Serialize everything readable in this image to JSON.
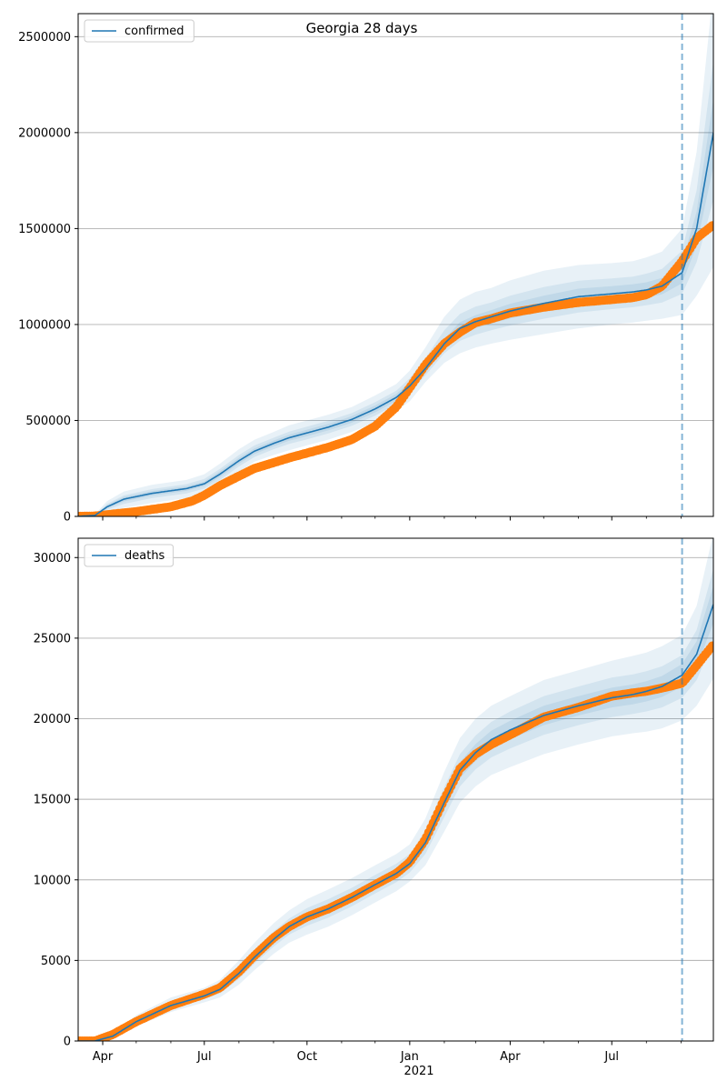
{
  "title": "Georgia 28 days",
  "colors": {
    "model": "#1f77b4",
    "observed": "#ff7f0e",
    "band": "#1f77b4",
    "grid": "#b0b0b0",
    "forecast_line": "#1f77b4"
  },
  "x_axis": {
    "start": "2020-03-10",
    "end": "2021-09-30",
    "forecast_start": "2021-09-02",
    "ticks": [
      {
        "date": "2020-04-01",
        "label": "Apr"
      },
      {
        "date": "2020-07-01",
        "label": "Jul"
      },
      {
        "date": "2020-10-01",
        "label": "Oct"
      },
      {
        "date": "2021-01-01",
        "label": "Jan"
      },
      {
        "date": "2021-04-01",
        "label": "Apr"
      },
      {
        "date": "2021-07-01",
        "label": "Jul"
      }
    ],
    "minor_ticks": [
      "2020-05-01",
      "2020-06-01",
      "2020-08-01",
      "2020-09-01",
      "2020-11-01",
      "2020-12-01",
      "2021-02-01",
      "2021-03-01",
      "2021-05-01",
      "2021-06-01",
      "2021-08-01",
      "2021-09-01"
    ],
    "year_label": "2021"
  },
  "chart_data": [
    {
      "type": "line",
      "legend": "confirmed",
      "legend_placement": "upper-left",
      "grid": "horizontal",
      "ylim": [
        0,
        2620000
      ],
      "yticks": [
        0,
        500000,
        1000000,
        1500000,
        2000000,
        2500000
      ],
      "ytick_labels": [
        "0",
        "500000",
        "1000000",
        "1500000",
        "2000000",
        "2500000"
      ],
      "model": {
        "x": [
          "2020-03-10",
          "2020-03-25",
          "2020-04-05",
          "2020-04-20",
          "2020-05-15",
          "2020-06-15",
          "2020-07-01",
          "2020-07-15",
          "2020-08-01",
          "2020-08-15",
          "2020-09-01",
          "2020-09-15",
          "2020-10-01",
          "2020-10-20",
          "2020-11-10",
          "2020-12-01",
          "2020-12-20",
          "2021-01-01",
          "2021-01-15",
          "2021-02-01",
          "2021-02-15",
          "2021-03-01",
          "2021-03-15",
          "2021-04-01",
          "2021-05-01",
          "2021-06-01",
          "2021-07-01",
          "2021-07-20",
          "2021-08-01",
          "2021-08-15",
          "2021-09-02",
          "2021-09-15",
          "2021-09-30"
        ],
        "y": [
          0,
          5000,
          50000,
          90000,
          120000,
          145000,
          170000,
          220000,
          290000,
          340000,
          380000,
          410000,
          435000,
          465000,
          505000,
          560000,
          620000,
          680000,
          770000,
          900000,
          980000,
          1015000,
          1040000,
          1070000,
          1110000,
          1145000,
          1160000,
          1170000,
          1180000,
          1200000,
          1270000,
          1500000,
          2000000
        ]
      },
      "observed": {
        "x": [
          "2020-03-10",
          "2020-03-25",
          "2020-04-10",
          "2020-05-01",
          "2020-06-01",
          "2020-06-20",
          "2020-07-01",
          "2020-07-15",
          "2020-08-01",
          "2020-08-15",
          "2020-09-01",
          "2020-09-15",
          "2020-10-01",
          "2020-10-20",
          "2020-11-10",
          "2020-12-01",
          "2020-12-20",
          "2021-01-01",
          "2021-01-15",
          "2021-02-01",
          "2021-02-15",
          "2021-03-01",
          "2021-03-15",
          "2021-04-01",
          "2021-05-01",
          "2021-06-01",
          "2021-07-01",
          "2021-07-20",
          "2021-08-01",
          "2021-08-15",
          "2021-09-02",
          "2021-09-15",
          "2021-09-30"
        ],
        "y": [
          0,
          2000,
          12000,
          25000,
          50000,
          80000,
          110000,
          160000,
          210000,
          250000,
          280000,
          305000,
          330000,
          360000,
          400000,
          470000,
          570000,
          670000,
          790000,
          900000,
          960000,
          1010000,
          1030000,
          1060000,
          1090000,
          1115000,
          1130000,
          1140000,
          1155000,
          1200000,
          1330000,
          1450000,
          1520000
        ]
      },
      "bands": [
        {
          "level": "outer",
          "lower": [
            0,
            2000,
            20000,
            45000,
            70000,
            95000,
            120000,
            165000,
            230000,
            285000,
            320000,
            345000,
            370000,
            400000,
            440000,
            490000,
            550000,
            600000,
            700000,
            800000,
            850000,
            880000,
            900000,
            920000,
            950000,
            980000,
            1000000,
            1010000,
            1020000,
            1030000,
            1050000,
            1150000,
            1300000
          ],
          "upper": [
            0,
            10000,
            80000,
            130000,
            165000,
            190000,
            220000,
            275000,
            350000,
            400000,
            440000,
            475000,
            500000,
            530000,
            570000,
            630000,
            690000,
            760000,
            880000,
            1040000,
            1130000,
            1170000,
            1190000,
            1230000,
            1280000,
            1310000,
            1320000,
            1330000,
            1350000,
            1380000,
            1500000,
            1900000,
            2750000
          ]
        },
        {
          "level": "middle",
          "lower": [
            0,
            3500,
            35000,
            65000,
            95000,
            120000,
            145000,
            190000,
            260000,
            310000,
            350000,
            378000,
            402000,
            432000,
            472000,
            525000,
            585000,
            640000,
            735000,
            850000,
            915000,
            947000,
            970000,
            995000,
            1030000,
            1062000,
            1080000,
            1090000,
            1100000,
            1115000,
            1160000,
            1325000,
            1650000
          ],
          "upper": [
            0,
            7500,
            65000,
            110000,
            142000,
            168000,
            195000,
            248000,
            320000,
            370000,
            410000,
            442000,
            468000,
            498000,
            538000,
            595000,
            655000,
            720000,
            825000,
            970000,
            1055000,
            1093000,
            1115000,
            1150000,
            1195000,
            1228000,
            1240000,
            1250000,
            1265000,
            1290000,
            1385000,
            1700000,
            2375000
          ]
        },
        {
          "level": "inner",
          "lower": [
            0,
            4200,
            42000,
            78000,
            108000,
            133000,
            158000,
            205000,
            275000,
            325000,
            365000,
            394000,
            418000,
            448000,
            488000,
            542000,
            602000,
            660000,
            752000,
            875000,
            948000,
            981000,
            1005000,
            1032000,
            1070000,
            1103000,
            1120000,
            1130000,
            1140000,
            1157000,
            1215000,
            1412000,
            1825000
          ],
          "upper": [
            0,
            6000,
            58000,
            102000,
            132000,
            157000,
            182000,
            235000,
            305000,
            355000,
            395000,
            426000,
            452000,
            482000,
            522000,
            578000,
            638000,
            700000,
            788000,
            925000,
            1012000,
            1049000,
            1075000,
            1108000,
            1150000,
            1187000,
            1200000,
            1210000,
            1220000,
            1243000,
            1325000,
            1588000,
            2175000
          ]
        }
      ]
    },
    {
      "type": "line",
      "legend": "deaths",
      "legend_placement": "upper-left",
      "grid": "horizontal",
      "ylim": [
        0,
        31200
      ],
      "yticks": [
        0,
        5000,
        10000,
        15000,
        20000,
        25000,
        30000
      ],
      "ytick_labels": [
        "0",
        "5000",
        "10000",
        "15000",
        "20000",
        "25000",
        "30000"
      ],
      "model": {
        "x": [
          "2020-03-10",
          "2020-03-25",
          "2020-04-10",
          "2020-05-01",
          "2020-06-01",
          "2020-07-01",
          "2020-07-15",
          "2020-08-01",
          "2020-08-15",
          "2020-09-01",
          "2020-09-15",
          "2020-10-01",
          "2020-10-20",
          "2020-11-10",
          "2020-12-01",
          "2020-12-20",
          "2021-01-01",
          "2021-01-15",
          "2021-02-01",
          "2021-02-15",
          "2021-03-01",
          "2021-03-15",
          "2021-04-01",
          "2021-05-01",
          "2021-06-01",
          "2021-07-01",
          "2021-07-20",
          "2021-08-01",
          "2021-08-15",
          "2021-09-02",
          "2021-09-15",
          "2021-09-30"
        ],
        "y": [
          0,
          0,
          300,
          1200,
          2200,
          2800,
          3200,
          4200,
          5200,
          6300,
          7100,
          7700,
          8200,
          8900,
          9700,
          10400,
          11000,
          12300,
          14800,
          16800,
          17900,
          18700,
          19300,
          20200,
          20800,
          21300,
          21500,
          21700,
          22000,
          22700,
          24000,
          27100
        ]
      },
      "observed": {
        "x": [
          "2020-03-10",
          "2020-03-25",
          "2020-04-10",
          "2020-05-01",
          "2020-06-01",
          "2020-07-01",
          "2020-07-15",
          "2020-08-01",
          "2020-08-15",
          "2020-09-01",
          "2020-09-15",
          "2020-10-01",
          "2020-10-20",
          "2020-11-10",
          "2020-12-01",
          "2020-12-20",
          "2021-01-01",
          "2021-01-15",
          "2021-02-01",
          "2021-02-15",
          "2021-03-01",
          "2021-03-15",
          "2021-04-01",
          "2021-05-01",
          "2021-06-01",
          "2021-07-01",
          "2021-07-20",
          "2021-08-01",
          "2021-08-15",
          "2021-09-02",
          "2021-09-15",
          "2021-09-30"
        ],
        "y": [
          0,
          0,
          400,
          1200,
          2200,
          2900,
          3300,
          4300,
          5300,
          6400,
          7100,
          7700,
          8200,
          8900,
          9700,
          10400,
          11100,
          12500,
          15000,
          16900,
          17800,
          18400,
          19000,
          20100,
          20700,
          21400,
          21600,
          21700,
          21900,
          22200,
          23300,
          24600
        ]
      },
      "bands": [
        {
          "level": "outer",
          "lower": [
            0,
            0,
            200,
            900,
            1800,
            2400,
            2700,
            3500,
            4400,
            5400,
            6100,
            6600,
            7100,
            7800,
            8600,
            9300,
            9900,
            10900,
            13000,
            14800,
            15800,
            16500,
            17000,
            17800,
            18400,
            18900,
            19100,
            19200,
            19400,
            19900,
            20800,
            22500
          ],
          "upper": [
            0,
            0,
            450,
            1600,
            2700,
            3300,
            3800,
            5000,
            6100,
            7300,
            8100,
            8800,
            9400,
            10100,
            10900,
            11600,
            12200,
            13800,
            16700,
            18800,
            20000,
            20800,
            21400,
            22400,
            23000,
            23600,
            23900,
            24100,
            24500,
            25200,
            27000,
            31500
          ]
        },
        {
          "level": "middle",
          "lower": [
            0,
            0,
            250,
            1050,
            2000,
            2600,
            2950,
            3850,
            4800,
            5850,
            6600,
            7150,
            7650,
            8350,
            9150,
            9850,
            10450,
            11600,
            13900,
            15800,
            16850,
            17600,
            18150,
            19000,
            19600,
            20100,
            20300,
            20450,
            20700,
            21300,
            22400,
            24800
          ],
          "upper": [
            0,
            0,
            400,
            1400,
            2450,
            3050,
            3500,
            4600,
            5650,
            6800,
            7600,
            8250,
            8800,
            9500,
            10300,
            11000,
            11600,
            13050,
            15750,
            17800,
            18950,
            19800,
            20450,
            21400,
            22000,
            22550,
            22750,
            22950,
            23250,
            23950,
            25500,
            29300
          ]
        },
        {
          "level": "inner",
          "lower": [
            0,
            0,
            275,
            1125,
            2100,
            2700,
            3075,
            4025,
            5000,
            6075,
            6850,
            7425,
            7925,
            8625,
            9425,
            10125,
            10725,
            11950,
            14350,
            16300,
            17375,
            18150,
            18725,
            19600,
            20200,
            20700,
            20900,
            21075,
            21350,
            22000,
            23200,
            25950
          ],
          "upper": [
            0,
            0,
            350,
            1300,
            2325,
            2925,
            3350,
            4400,
            5425,
            6525,
            7350,
            7975,
            8500,
            9200,
            10000,
            10700,
            11300,
            12650,
            15250,
            17300,
            18425,
            19250,
            19875,
            20800,
            21400,
            21925,
            22125,
            22325,
            22650,
            23400,
            24800,
            28250
          ]
        }
      ]
    }
  ]
}
